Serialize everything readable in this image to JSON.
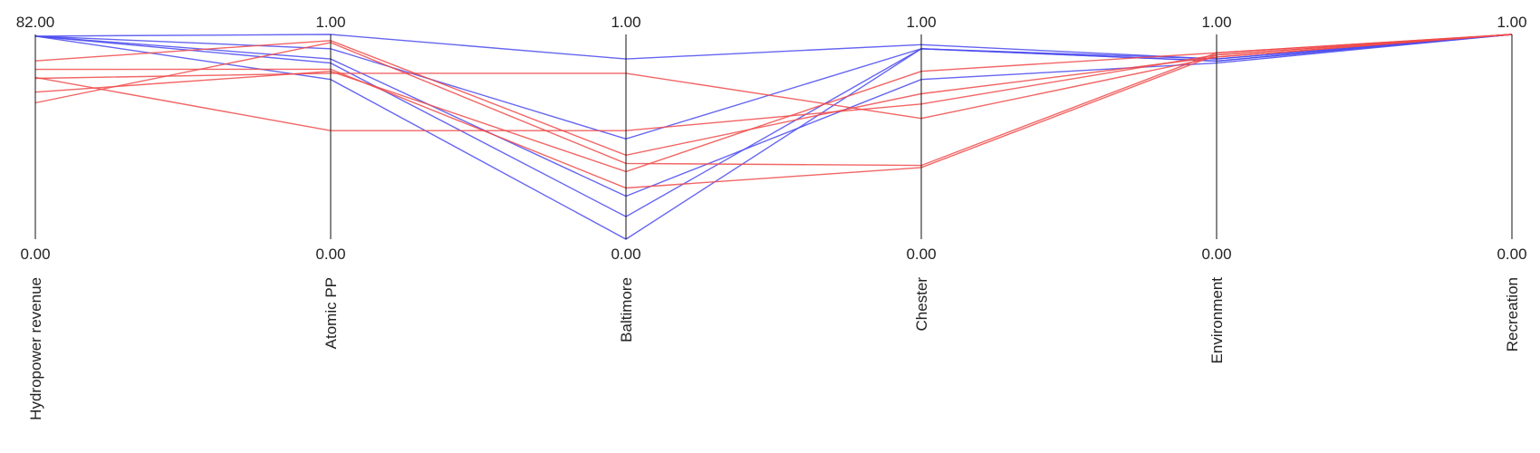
{
  "chart_data": {
    "type": "parallel_coordinates",
    "title": "",
    "axes": [
      {
        "name": "Hydropower revenue",
        "min_label": "0.00",
        "max_label": "82.00",
        "range": [
          0,
          82
        ]
      },
      {
        "name": "Atomic PP",
        "min_label": "0.00",
        "max_label": "1.00",
        "range": [
          0,
          1
        ]
      },
      {
        "name": "Baltimore",
        "min_label": "0.00",
        "max_label": "1.00",
        "range": [
          0,
          1
        ]
      },
      {
        "name": "Chester",
        "min_label": "0.00",
        "max_label": "1.00",
        "range": [
          0,
          1
        ]
      },
      {
        "name": "Environment",
        "min_label": "0.00",
        "max_label": "1.00",
        "range": [
          0,
          1
        ]
      },
      {
        "name": "Recreation",
        "min_label": "0.00",
        "max_label": "1.00",
        "range": [
          0,
          1
        ]
      }
    ],
    "colors": {
      "blue": "#4a4af0",
      "red": "#f04a4a"
    },
    "lines": [
      {
        "color": "blue",
        "values": [
          81.3,
          1.0,
          0.88,
          0.95,
          0.88,
          1.0
        ]
      },
      {
        "color": "blue",
        "values": [
          81.3,
          0.93,
          0.49,
          0.93,
          0.88,
          1.0
        ]
      },
      {
        "color": "blue",
        "values": [
          81.3,
          0.88,
          0.21,
          0.78,
          0.86,
          1.0
        ]
      },
      {
        "color": "blue",
        "values": [
          81.3,
          0.86,
          0.11,
          0.93,
          0.87,
          1.0
        ]
      },
      {
        "color": "blue",
        "values": [
          81.3,
          0.78,
          0.0,
          0.93,
          0.87,
          1.0
        ]
      },
      {
        "color": "red",
        "values": [
          71.4,
          0.97,
          0.41,
          0.71,
          0.89,
          1.0
        ]
      },
      {
        "color": "red",
        "values": [
          54.6,
          0.96,
          0.37,
          0.36,
          0.91,
          1.0
        ]
      },
      {
        "color": "red",
        "values": [
          68.0,
          0.83,
          0.25,
          0.35,
          0.9,
          1.0
        ]
      },
      {
        "color": "red",
        "values": [
          64.4,
          0.81,
          0.81,
          0.59,
          0.89,
          1.0
        ]
      },
      {
        "color": "red",
        "values": [
          58.9,
          0.82,
          0.33,
          0.82,
          0.91,
          1.0
        ]
      },
      {
        "color": "red",
        "values": [
          64.8,
          0.53,
          0.53,
          0.66,
          0.9,
          1.0
        ]
      }
    ]
  }
}
